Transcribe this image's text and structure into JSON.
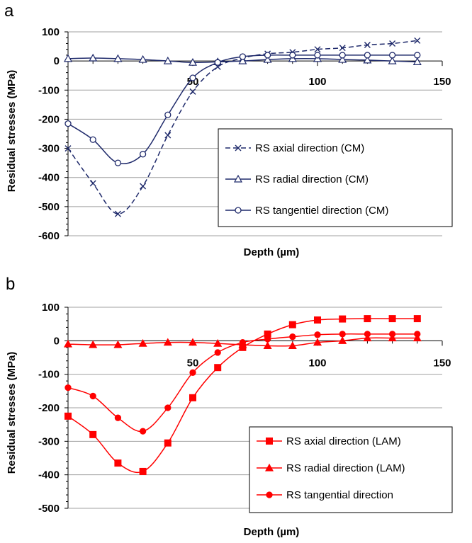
{
  "chart_data": [
    {
      "panel": "a",
      "type": "line",
      "xlabel": "Depth (µm)",
      "ylabel": "Residual stresses (MPa)",
      "xlim": [
        0,
        150
      ],
      "ylim": [
        -600,
        100
      ],
      "xticks": [
        50,
        100,
        150
      ],
      "yticks": [
        100,
        0,
        -100,
        -200,
        -300,
        -400,
        -500,
        -600
      ],
      "grid": "horizontal",
      "legend": "bottom-right",
      "color": "#1f2a6b",
      "series": [
        {
          "name": "RS axial direction (CM)",
          "marker": "x",
          "dash": "dashed",
          "x": [
            0,
            10,
            20,
            30,
            40,
            50,
            60,
            70,
            80,
            90,
            100,
            110,
            120,
            130,
            140
          ],
          "y": [
            -300,
            -420,
            -525,
            -430,
            -255,
            -105,
            -20,
            10,
            25,
            30,
            40,
            45,
            55,
            60,
            70
          ]
        },
        {
          "name": "RS radial direction (CM)",
          "marker": "triangle",
          "dash": "solid",
          "x": [
            0,
            10,
            20,
            30,
            40,
            50,
            60,
            70,
            80,
            90,
            100,
            110,
            120,
            130,
            140
          ],
          "y": [
            8,
            10,
            8,
            5,
            0,
            -5,
            -3,
            0,
            5,
            8,
            8,
            5,
            3,
            0,
            -3
          ]
        },
        {
          "name": "RS tangentiel direction (CM)",
          "marker": "circle",
          "dash": "solid",
          "x": [
            0,
            10,
            20,
            30,
            40,
            50,
            60,
            70,
            80,
            90,
            100,
            110,
            120,
            130,
            140
          ],
          "y": [
            -215,
            -270,
            -350,
            -320,
            -185,
            -58,
            -5,
            15,
            20,
            20,
            20,
            20,
            20,
            20,
            20
          ]
        }
      ]
    },
    {
      "panel": "b",
      "type": "line",
      "xlabel": "Depth (µm)",
      "ylabel": "Residual stresses (MPa)",
      "xlim": [
        0,
        150
      ],
      "ylim": [
        -500,
        100
      ],
      "xticks": [
        50,
        100,
        150
      ],
      "yticks": [
        100,
        0,
        -100,
        -200,
        -300,
        -400,
        -500
      ],
      "grid": "horizontal",
      "legend": "bottom-right",
      "color": "#ff0000",
      "series": [
        {
          "name": "RS axial direction (LAM)",
          "marker": "square",
          "x": [
            0,
            10,
            20,
            30,
            40,
            50,
            60,
            70,
            80,
            90,
            100,
            110,
            120,
            130,
            140
          ],
          "y": [
            -225,
            -280,
            -365,
            -390,
            -305,
            -170,
            -80,
            -20,
            20,
            48,
            62,
            65,
            66,
            66,
            66
          ]
        },
        {
          "name": "RS radial direction (LAM)",
          "marker": "triangle",
          "x": [
            0,
            10,
            20,
            30,
            40,
            50,
            60,
            70,
            80,
            90,
            100,
            110,
            120,
            130,
            140
          ],
          "y": [
            -10,
            -12,
            -12,
            -8,
            -5,
            -5,
            -8,
            -12,
            -15,
            -15,
            -5,
            0,
            8,
            8,
            8
          ]
        },
        {
          "name": "RS tangential direction",
          "marker": "circle",
          "x": [
            0,
            10,
            20,
            30,
            40,
            50,
            60,
            70,
            80,
            90,
            100,
            110,
            120,
            130,
            140
          ],
          "y": [
            -140,
            -165,
            -230,
            -270,
            -200,
            -95,
            -35,
            -5,
            5,
            12,
            18,
            20,
            20,
            20,
            20
          ]
        }
      ]
    }
  ]
}
